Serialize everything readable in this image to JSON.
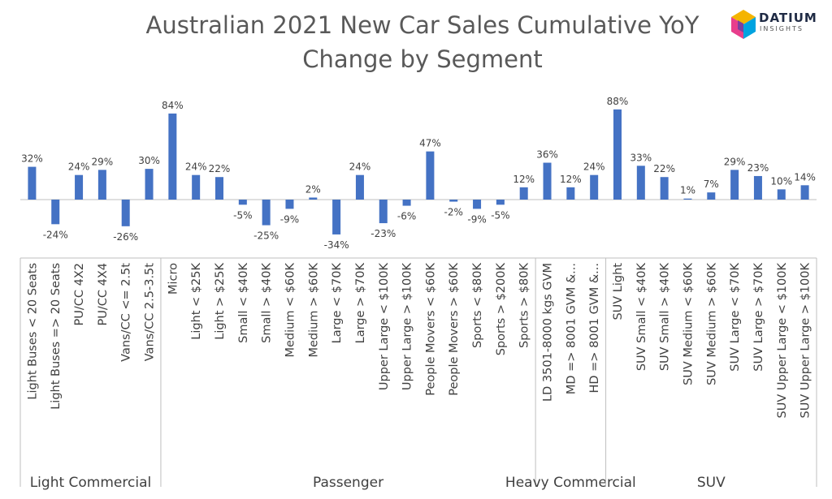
{
  "title_line1": "Australian 2021 New Car Sales Cumulative YoY",
  "title_line2": "Change by Segment",
  "logo": {
    "name": "DATIUM",
    "sub": "INSIGHTS"
  },
  "colors": {
    "bar": "#4472C4",
    "text": "#404040",
    "axis": "#bfbfbf"
  },
  "chart_data": {
    "type": "bar",
    "title": "Australian 2021 New Car Sales Cumulative YoY Change by Segment",
    "ylim": [
      -40,
      95
    ],
    "grid": false,
    "categories": [
      "Light Buses < 20 Seats",
      "Light Buses => 20 Seats",
      "PU/CC 4X2",
      "PU/CC 4X4",
      "Vans/CC <= 2.5t",
      "Vans/CC 2.5-3.5t",
      "Micro",
      "Light < $25K",
      "Light > $25K",
      "Small < $40K",
      "Small > $40K",
      "Medium < $60K",
      "Medium > $60K",
      "Large < $70K",
      "Large > $70K",
      "Upper Large < $100K",
      "Upper Large > $100K",
      "People Movers < $60K",
      "People Movers > $60K",
      "Sports < $80K",
      "Sports > $200K",
      "Sports > $80K",
      "LD 3501-8000 kgs GVM",
      "MD => 8001 GVM &...",
      "HD => 8001 GVM &...",
      "SUV Light",
      "SUV Small < $40K",
      "SUV Small > $40K",
      "SUV Medium < $60K",
      "SUV Medium > $60K",
      "SUV Large < $70K",
      "SUV Large > $70K",
      "SUV Upper Large < $100K",
      "SUV Upper Large > $100K"
    ],
    "values": [
      32,
      -24,
      24,
      29,
      -26,
      30,
      84,
      24,
      22,
      -5,
      -25,
      -9,
      2,
      -34,
      24,
      -23,
      -6,
      47,
      -2,
      -9,
      -5,
      12,
      36,
      12,
      24,
      88,
      33,
      22,
      1,
      7,
      29,
      23,
      10,
      14
    ],
    "data_labels": [
      "32%",
      "-24%",
      "24%",
      "29%",
      "-26%",
      "30%",
      "84%",
      "24%",
      "22%",
      "-5%",
      "-25%",
      "-9%",
      "2%",
      "-34%",
      "24%",
      "-23%",
      "-6%",
      "47%",
      "-2%",
      "-9%",
      "-5%",
      "12%",
      "36%",
      "12%",
      "24%",
      "88%",
      "33%",
      "22%",
      "1%",
      "7%",
      "29%",
      "23%",
      "10%",
      "14%"
    ],
    "groups": [
      {
        "name": "Light Commercial",
        "count": 6
      },
      {
        "name": "Passenger",
        "count": 16
      },
      {
        "name": "Heavy Commercial",
        "count": 3
      },
      {
        "name": "SUV",
        "count": 9
      }
    ]
  }
}
